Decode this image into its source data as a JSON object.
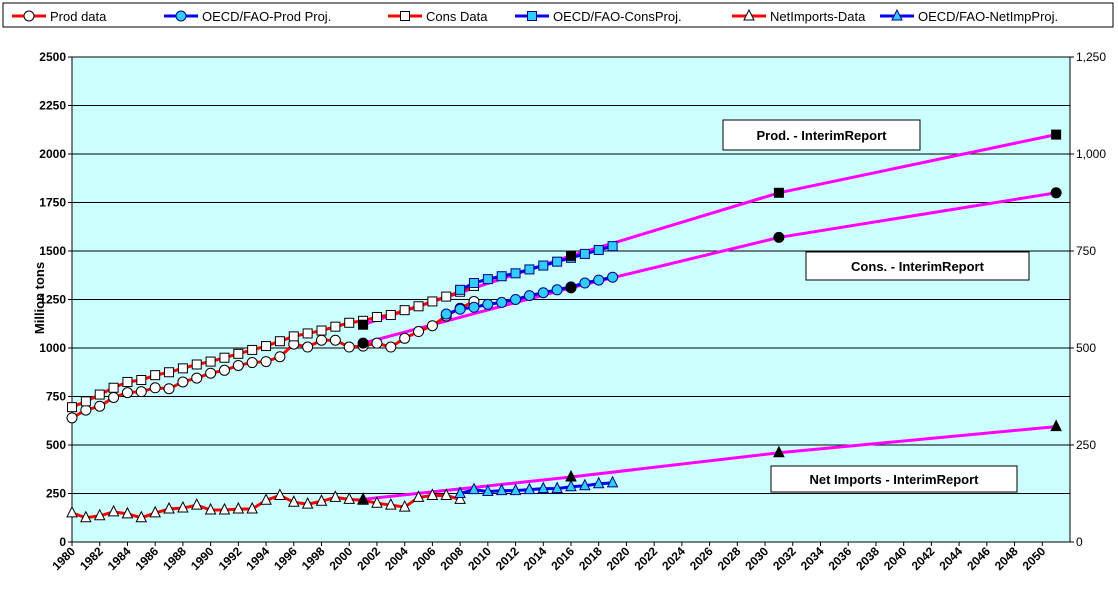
{
  "chart_data": {
    "type": "line",
    "title": "",
    "xlabel": "",
    "ylabel": "Million tons",
    "xlim": [
      1980,
      2052
    ],
    "ylim": [
      0,
      2500
    ],
    "y2lim": [
      0,
      1250
    ],
    "x_tick_labels": [
      "1980",
      "1982",
      "1984",
      "1986",
      "1988",
      "1990",
      "1992",
      "1994",
      "1996",
      "1998",
      "2000",
      "2002",
      "2004",
      "2006",
      "2008",
      "2010",
      "2012",
      "2014",
      "2016",
      "2018",
      "2020",
      "2022",
      "2024",
      "2026",
      "2028",
      "2030",
      "2032",
      "2034",
      "2036",
      "2038",
      "2040",
      "2042",
      "2044",
      "2046",
      "2048",
      "2050"
    ],
    "y_tick_labels": [
      "0",
      "250",
      "500",
      "750",
      "1000",
      "1250",
      "1500",
      "1750",
      "2000",
      "2250",
      "2500"
    ],
    "y2_tick_labels": [
      "0",
      "250",
      "500",
      "750",
      "1,000",
      "1,250"
    ],
    "grid": true,
    "legend_position": "top",
    "colors": {
      "plot_bg": "#ccffff",
      "data_line": "#ff0000",
      "proj_line": "#0000ff",
      "proj_marker": "#33ccff",
      "interim_line": "#ff00ff"
    },
    "series": [
      {
        "name": "Prod data",
        "marker": "circle-open",
        "x": [
          1980,
          1981,
          1982,
          1983,
          1984,
          1985,
          1986,
          1987,
          1988,
          1989,
          1990,
          1991,
          1992,
          1993,
          1994,
          1995,
          1996,
          1997,
          1998,
          1999,
          2000,
          2001,
          2002,
          2003,
          2004,
          2005,
          2006,
          2007,
          2008,
          2009
        ],
        "values": [
          640,
          680,
          700,
          745,
          770,
          775,
          795,
          790,
          825,
          845,
          870,
          885,
          910,
          925,
          930,
          955,
          1020,
          1005,
          1040,
          1040,
          1005,
          1010,
          1025,
          1005,
          1050,
          1085,
          1115,
          1165,
          1205,
          1240
        ]
      },
      {
        "name": "OECD/FAO-Prod Proj.",
        "marker": "circle-filled",
        "x": [
          2007,
          2008,
          2009,
          2010,
          2011,
          2012,
          2013,
          2014,
          2015,
          2016,
          2017,
          2018,
          2019
        ],
        "values": [
          1175,
          1200,
          1210,
          1225,
          1235,
          1250,
          1270,
          1285,
          1300,
          1315,
          1335,
          1350,
          1365
        ]
      },
      {
        "name": "Cons Data",
        "marker": "square-open",
        "x": [
          1980,
          1981,
          1982,
          1983,
          1984,
          1985,
          1986,
          1987,
          1988,
          1989,
          1990,
          1991,
          1992,
          1993,
          1994,
          1995,
          1996,
          1997,
          1998,
          1999,
          2000,
          2001,
          2002,
          2003,
          2004,
          2005,
          2006,
          2007,
          2008,
          2009
        ],
        "values": [
          695,
          725,
          760,
          795,
          825,
          835,
          860,
          875,
          895,
          915,
          930,
          950,
          970,
          990,
          1010,
          1035,
          1060,
          1075,
          1090,
          1110,
          1130,
          1140,
          1160,
          1170,
          1195,
          1215,
          1240,
          1265,
          1290,
          1320
        ]
      },
      {
        "name": "OECD/FAO-ConsProj.",
        "marker": "square-filled",
        "x": [
          2008,
          2009,
          2010,
          2011,
          2012,
          2013,
          2014,
          2015,
          2016,
          2017,
          2018,
          2019
        ],
        "values": [
          1300,
          1335,
          1355,
          1370,
          1385,
          1405,
          1425,
          1445,
          1465,
          1485,
          1505,
          1525
        ]
      },
      {
        "name": "NetImports-Data",
        "marker": "triangle-open",
        "x": [
          1980,
          1981,
          1982,
          1983,
          1984,
          1985,
          1986,
          1987,
          1988,
          1989,
          1990,
          1991,
          1992,
          1993,
          1994,
          1995,
          1996,
          1997,
          1998,
          1999,
          2000,
          2001,
          2002,
          2003,
          2004,
          2005,
          2006,
          2007,
          2008
        ],
        "values": [
          150,
          125,
          135,
          155,
          145,
          125,
          150,
          170,
          175,
          190,
          165,
          165,
          170,
          170,
          215,
          240,
          205,
          195,
          210,
          230,
          220,
          215,
          200,
          190,
          180,
          230,
          240,
          240,
          220
        ]
      },
      {
        "name": "OECD/FAO-NetImpProj.",
        "marker": "triangle-filled",
        "x": [
          2008,
          2009,
          2010,
          2011,
          2012,
          2013,
          2014,
          2015,
          2016,
          2017,
          2018,
          2019
        ],
        "values": [
          250,
          270,
          260,
          265,
          265,
          270,
          275,
          275,
          285,
          290,
          300,
          305
        ]
      }
    ],
    "interim_lines": [
      {
        "label": "Prod. - InterimReport",
        "x": [
          2001,
          2016,
          2031,
          2051
        ],
        "values": [
          1120,
          1475,
          1800,
          2100
        ],
        "marker": "square-black"
      },
      {
        "label": "Cons. - InterimReport",
        "x": [
          2001,
          2016,
          2031,
          2051
        ],
        "values": [
          1025,
          1310,
          1570,
          1800
        ],
        "marker": "circle-black"
      },
      {
        "label": "Net Imports - InterimReport",
        "x": [
          2001,
          2016,
          2031,
          2051
        ],
        "values": [
          220,
          335,
          460,
          595
        ],
        "marker": "triangle-black"
      }
    ]
  }
}
